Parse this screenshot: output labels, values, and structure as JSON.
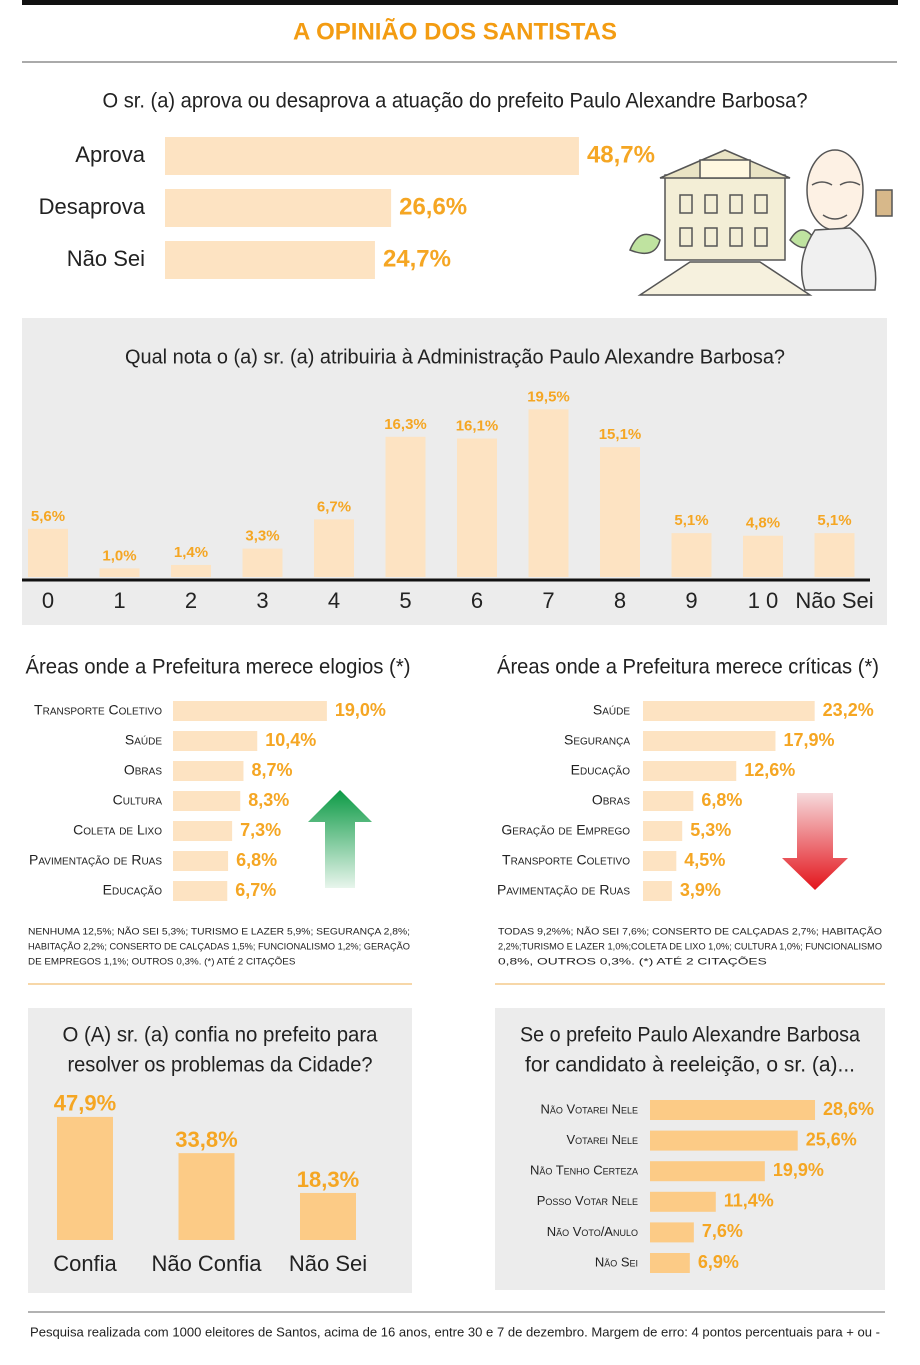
{
  "header": {
    "title": "A OPINIÃO DOS SANTISTAS"
  },
  "chart_data": [
    {
      "type": "bar",
      "orientation": "horizontal",
      "title": "O  sr. (a) aprova ou desaprova a atuação do prefeito Paulo Alexandre Barbosa?",
      "categories": [
        "Aprova",
        "Desaprova",
        "Não Sei"
      ],
      "values": [
        48.7,
        26.6,
        24.7
      ],
      "value_labels": [
        "48,7%",
        "26,6%",
        "24,7%"
      ],
      "color": "#fde3c2"
    },
    {
      "type": "bar",
      "orientation": "vertical",
      "title": "Qual nota o (a) sr. (a) atribuiria à Administração Paulo Alexandre Barbosa?",
      "categories": [
        "0",
        "1",
        "2",
        "3",
        "4",
        "5",
        "6",
        "7",
        "8",
        "9",
        "1 0",
        "Não Sei"
      ],
      "values": [
        5.6,
        1.0,
        1.4,
        3.3,
        6.7,
        16.3,
        16.1,
        19.5,
        15.1,
        5.1,
        4.8,
        5.1
      ],
      "value_labels": [
        "5,6%",
        "1,0%",
        "1,4%",
        "3,3%",
        "6,7%",
        "16,3%",
        "16,1%",
        "19,5%",
        "15,1%",
        "5,1%",
        "4,8%",
        "5,1%"
      ],
      "color": "#fde3c2"
    },
    {
      "type": "bar",
      "orientation": "horizontal",
      "title": "Áreas onde a Prefeitura merece elogios (*)",
      "categories": [
        "Transporte Coletivo",
        "Saúde",
        "Obras",
        "Cultura",
        "Coleta de Lixo",
        "Pavimentação de Ruas",
        "Educação"
      ],
      "values": [
        19.0,
        10.4,
        8.7,
        8.3,
        7.3,
        6.8,
        6.7
      ],
      "value_labels": [
        "19,0%",
        "10,4%",
        "8,7%",
        "8,3%",
        "7,3%",
        "6,8%",
        "6,7%"
      ],
      "color": "#fde3c2",
      "note": [
        "NENHUMA 12,5%; NÃO SEI  5,3%;  TURISMO E LAZER 5,9%; SEGURANÇA 2,8%;",
        "HABITAÇÃO 2,2%; CONSERTO DE CALÇADAS 1,5%; FUNCIONALISMO 1,2%; GERAÇÃO",
        "DE EMPREGOS 1,1%; OUTROS 0,3%. (*) ATÉ 2 CITAÇÕES"
      ]
    },
    {
      "type": "bar",
      "orientation": "horizontal",
      "title": "Áreas onde a Prefeitura merece críticas  (*)",
      "categories": [
        "Saúde",
        "Segurança",
        "Educação",
        "Obras",
        "Geração de Emprego",
        "Transporte Coletivo",
        "Pavimentação de Ruas"
      ],
      "values": [
        23.2,
        17.9,
        12.6,
        6.8,
        5.3,
        4.5,
        3.9
      ],
      "value_labels": [
        "23,2%",
        "17,9%",
        "12,6%",
        "6,8%",
        "5,3%",
        "4,5%",
        "3,9%"
      ],
      "color": "#fde3c2",
      "note": [
        "TODAS 9,2%%; NÃO SEI 7,6%;  CONSERTO DE CALÇADAS 2,7%; HABITAÇÃO",
        "2,2%;TURISMO E LAZER 1,0%;COLETA DE LIXO 1,0%; CULTURA 1,0%; FUNCIONALISMO",
        "0,8%, OUTROS 0,3%.  (*) ATÉ 2 CITAÇÕES"
      ]
    },
    {
      "type": "bar",
      "orientation": "vertical",
      "title": [
        "O (A)  sr. (a) confia no prefeito para",
        "resolver os problemas da Cidade?"
      ],
      "categories": [
        "Confia",
        "Não Confia",
        "Não Sei"
      ],
      "values": [
        47.9,
        33.8,
        18.3
      ],
      "value_labels": [
        "47,9%",
        "33,8%",
        "18,3%"
      ],
      "color": "#fccb86"
    },
    {
      "type": "bar",
      "orientation": "horizontal",
      "title": [
        "Se o prefeito Paulo Alexandre Barbosa",
        "for candidato à reeleição, o sr. (a)..."
      ],
      "categories": [
        "Não Votarei Nele",
        "Votarei Nele",
        "Não Tenho Certeza",
        "Posso Votar Nele",
        "Não Voto/Anulo",
        "Não Sei"
      ],
      "values": [
        28.6,
        25.6,
        19.9,
        11.4,
        7.6,
        6.9
      ],
      "value_labels": [
        "28,6%",
        "25,6%",
        "19,9%",
        "11,4%",
        "7,6%",
        "6,9%"
      ],
      "color": "#fccb86"
    }
  ],
  "footer": "Pesquisa realizada com 1000 eleitores de Santos, acima de 16 anos, entre 30 e 7 de dezembro.  Margem de erro: 4 pontos percentuais para + ou -"
}
